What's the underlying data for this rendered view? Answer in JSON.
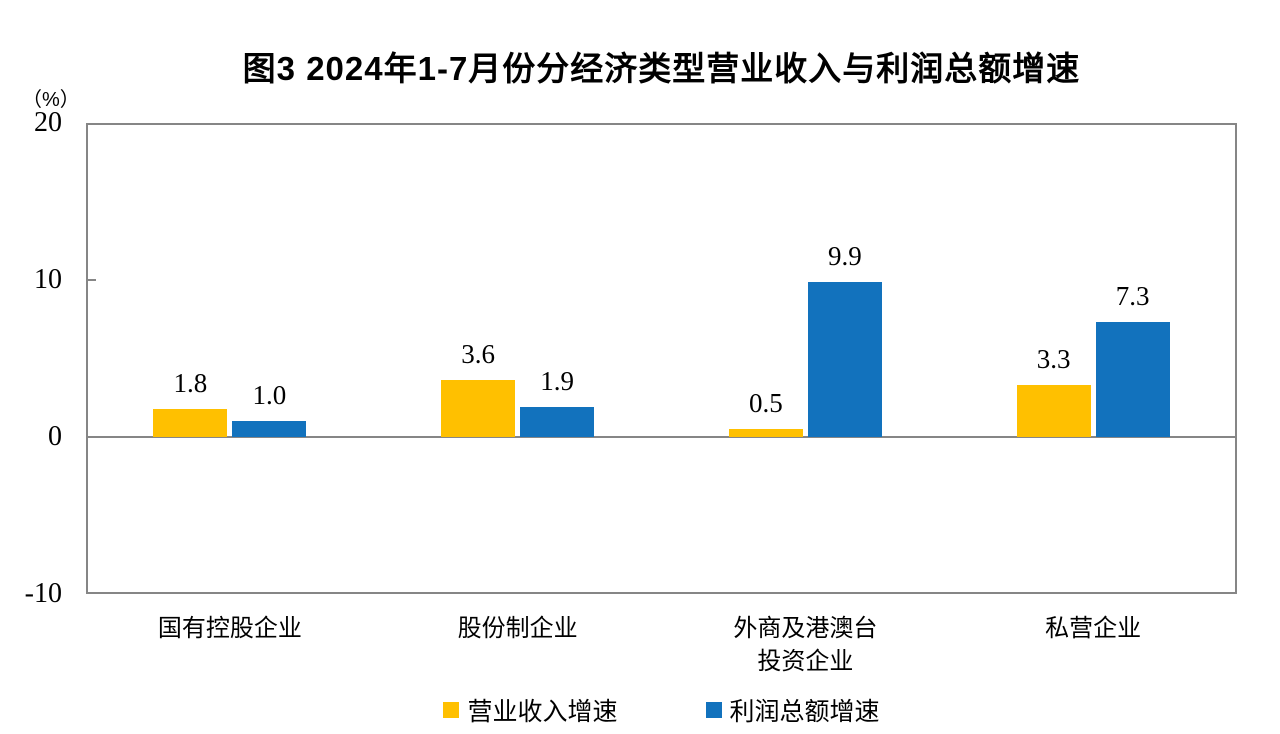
{
  "title": "图3 2024年1-7月份分经济类型营业收入与利润总额增速",
  "y_axis": {
    "unit_label": "（%）",
    "ticks": [
      20,
      10,
      0,
      -10
    ]
  },
  "legend": [
    {
      "label": "营业收入增速",
      "color": "#FFC000"
    },
    {
      "label": "利润总额增速",
      "color": "#1272BD"
    }
  ],
  "colors": {
    "revenue_series": "#FFC000",
    "profit_series": "#1272BD",
    "axis_line": "#868686",
    "text": "#000000"
  },
  "chart_data": {
    "type": "bar",
    "title": "图3 2024年1-7月份分经济类型营业收入与利润总额增速",
    "categories": [
      "国有控股企业",
      "股份制企业",
      "外商及港澳台\n投资企业",
      "私营企业"
    ],
    "series": [
      {
        "name": "营业收入增速",
        "color": "#FFC000",
        "values": [
          1.8,
          3.6,
          0.5,
          3.3
        ]
      },
      {
        "name": "利润总额增速",
        "color": "#1272BD",
        "values": [
          1.0,
          1.9,
          9.9,
          7.3
        ]
      }
    ],
    "xlabel": "",
    "ylabel": "（%）",
    "ylim": [
      -10,
      20
    ],
    "yticks": [
      20,
      10,
      0,
      -10
    ],
    "grid": false,
    "zero_baseline": true,
    "bar_value_labels": true,
    "legend_position": "bottom"
  }
}
